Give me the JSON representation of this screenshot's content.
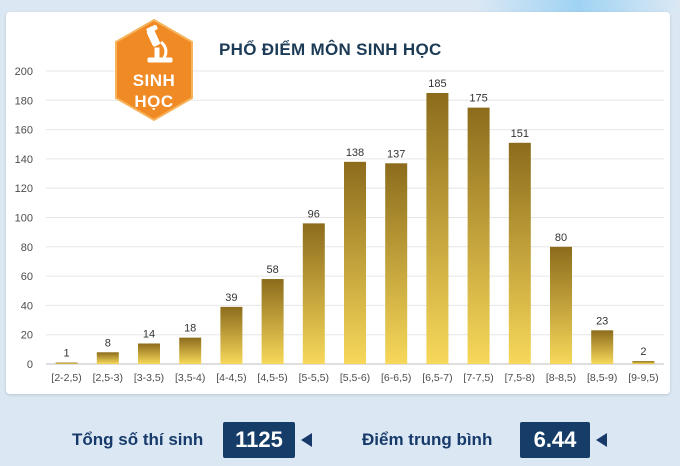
{
  "header": {
    "badge_line1": "SINH",
    "badge_line2": "HỌC",
    "title": "PHỔ ĐIỂM MÔN SINH HỌC"
  },
  "chart_data": {
    "type": "bar",
    "title": "PHỔ ĐIỂM MÔN SINH HỌC",
    "xlabel": "",
    "ylabel": "",
    "categories": [
      "[2-2,5)",
      "[2,5-3)",
      "[3-3,5)",
      "[3,5-4)",
      "[4-4,5)",
      "[4,5-5)",
      "[5-5,5)",
      "[5,5-6)",
      "[6-6,5)",
      "[6,5-7)",
      "[7-7,5)",
      "[7,5-8)",
      "[8-8,5)",
      "[8,5-9)",
      "[9-9,5)"
    ],
    "values": [
      1,
      8,
      14,
      18,
      39,
      58,
      96,
      138,
      137,
      185,
      175,
      151,
      80,
      23,
      2
    ],
    "ylim": [
      0,
      200
    ],
    "yticks": [
      0,
      20,
      40,
      60,
      80,
      100,
      120,
      140,
      160,
      180,
      200
    ],
    "grid": true,
    "legend": "none",
    "bar_color_top": "#8c6c1c",
    "bar_color_bottom": "#f7d85a"
  },
  "footer": {
    "total_label": "Tổng số thí sinh",
    "total_value": "1125",
    "avg_label": "Điểm trung bình",
    "avg_value": "6.44"
  },
  "colors": {
    "badge_orange": "#f08a24",
    "navy": "#163d68",
    "background": "#dbe8f4"
  },
  "icons": [
    "microscope-icon",
    "pointer-arrow-icon"
  ]
}
